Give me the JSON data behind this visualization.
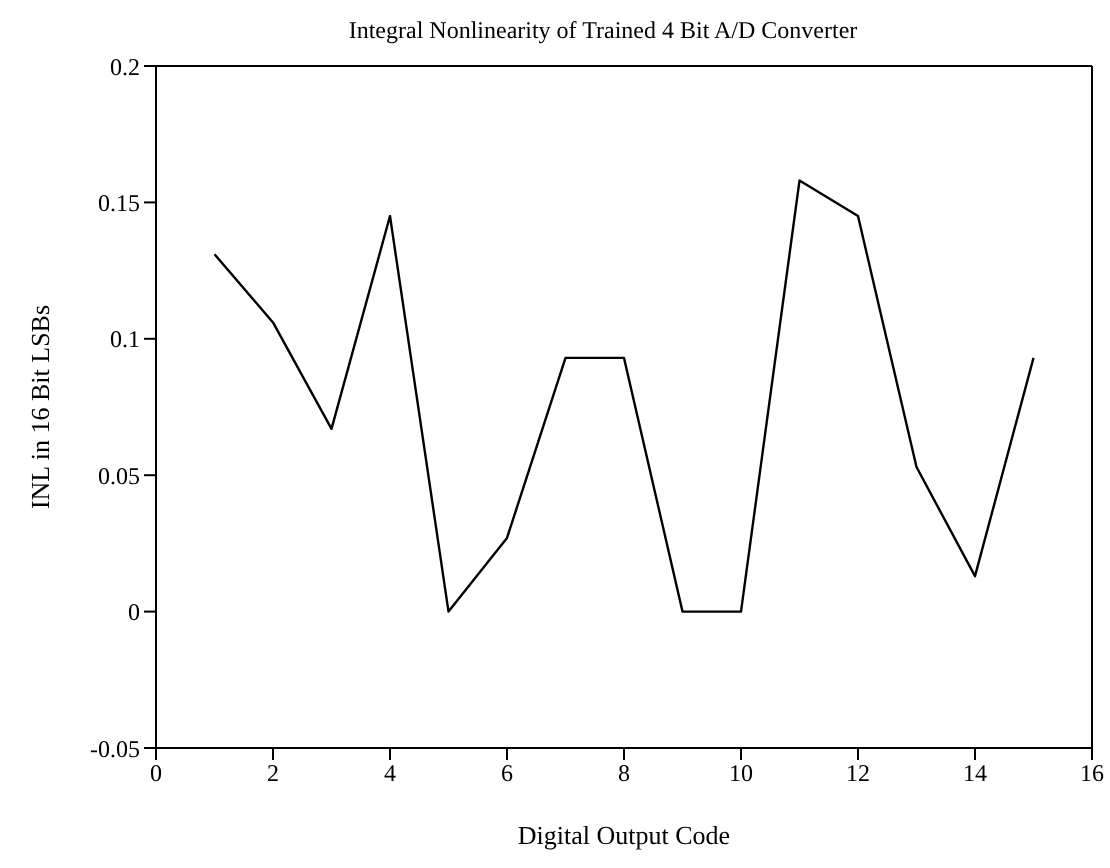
{
  "chart_data": {
    "type": "line",
    "title": "Integral Nonlinearity of Trained 4 Bit A/D Converter",
    "xlabel": "Digital Output Code",
    "ylabel": "INL in 16 Bit LSBs",
    "x": [
      1,
      2,
      3,
      4,
      5,
      6,
      7,
      8,
      9,
      10,
      11,
      12,
      13,
      14,
      15
    ],
    "series": [
      {
        "color": "#000000",
        "values": [
          0.131,
          0.106,
          0.067,
          0.145,
          0,
          0.027,
          0.093,
          0.093,
          0,
          0,
          0.158,
          0.145,
          0.053,
          0.013,
          0.093
        ]
      }
    ],
    "xlim": [
      0,
      16
    ],
    "xticks": [
      0,
      2,
      4,
      6,
      8,
      10,
      12,
      14,
      16
    ],
    "ylim": [
      -0.05,
      0.2
    ],
    "yticks": [
      -0.05,
      0,
      0.05,
      0.1,
      0.15,
      0.2
    ],
    "grid": false,
    "legend": false,
    "marker": "none",
    "line_style": "solid"
  }
}
